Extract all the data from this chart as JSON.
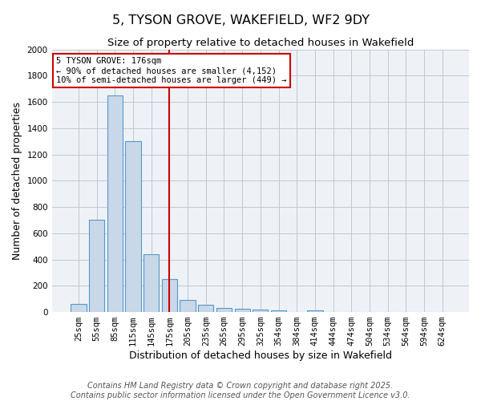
{
  "title": "5, TYSON GROVE, WAKEFIELD, WF2 9DY",
  "subtitle": "Size of property relative to detached houses in Wakefield",
  "xlabel": "Distribution of detached houses by size in Wakefield",
  "ylabel": "Number of detached properties",
  "categories": [
    "25sqm",
    "55sqm",
    "85sqm",
    "115sqm",
    "145sqm",
    "175sqm",
    "205sqm",
    "235sqm",
    "265sqm",
    "295sqm",
    "325sqm",
    "354sqm",
    "384sqm",
    "414sqm",
    "444sqm",
    "474sqm",
    "504sqm",
    "534sqm",
    "564sqm",
    "594sqm",
    "624sqm"
  ],
  "values": [
    60,
    700,
    1650,
    1300,
    440,
    250,
    90,
    55,
    30,
    25,
    20,
    10,
    0,
    15,
    0,
    0,
    0,
    0,
    0,
    0,
    0
  ],
  "bar_color": "#c8d8e8",
  "bar_edge_color": "#5599cc",
  "vline_x": 5,
  "vline_color": "#cc0000",
  "annotation_line1": "5 TYSON GROVE: 176sqm",
  "annotation_line2": "← 90% of detached houses are smaller (4,152)",
  "annotation_line3": "10% of semi-detached houses are larger (449) →",
  "annotation_box_color": "#cc0000",
  "ylim": [
    0,
    2000
  ],
  "yticks": [
    0,
    200,
    400,
    600,
    800,
    1000,
    1200,
    1400,
    1600,
    1800,
    2000
  ],
  "footer_line1": "Contains HM Land Registry data © Crown copyright and database right 2025.",
  "footer_line2": "Contains public sector information licensed under the Open Government Licence v3.0.",
  "background_color": "#eef2f6",
  "grid_color": "#c0c8d0",
  "title_fontsize": 11.5,
  "subtitle_fontsize": 9.5,
  "axis_label_fontsize": 9,
  "tick_fontsize": 7.5,
  "footer_fontsize": 7
}
